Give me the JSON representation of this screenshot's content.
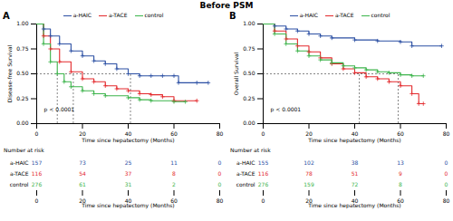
{
  "title": "Before PSM",
  "chart_data": [
    {
      "type": "step",
      "panel": "A",
      "marker": "plus",
      "xlabel": "Time since hepatectomy (Months)",
      "ylabel": "Disease-free Survival",
      "annotation": "p < 0.0001",
      "xlim": [
        0,
        80
      ],
      "xticks": [
        0,
        20,
        40,
        60,
        80
      ],
      "ylim": [
        0,
        1
      ],
      "yticks": [
        {
          "value": 0,
          "label": "0.00"
        },
        {
          "value": 0.25,
          "label": "0.25"
        },
        {
          "value": 0.5,
          "label": "0.50"
        },
        {
          "value": 0.75,
          "label": "0.75"
        },
        {
          "value": 1,
          "label": "1.00"
        }
      ],
      "legend": "top",
      "medians": {
        "level": 0.5,
        "times": [
          9,
          16,
          41
        ]
      },
      "series": [
        {
          "name": "a-HAIC",
          "color": "#2b4fa3",
          "x": [
            0,
            3,
            6,
            10,
            15,
            20,
            25,
            30,
            35,
            40,
            45,
            50,
            55,
            60,
            62,
            70,
            75
          ],
          "values": [
            1,
            0.95,
            0.88,
            0.8,
            0.73,
            0.68,
            0.63,
            0.6,
            0.55,
            0.5,
            0.48,
            0.48,
            0.48,
            0.48,
            0.41,
            0.41,
            0.41
          ]
        },
        {
          "name": "a-TACE",
          "color": "#e3282c",
          "x": [
            0,
            3,
            6,
            10,
            15,
            20,
            25,
            30,
            35,
            40,
            45,
            50,
            55,
            60,
            70
          ],
          "values": [
            1,
            0.88,
            0.75,
            0.62,
            0.52,
            0.45,
            0.42,
            0.38,
            0.35,
            0.33,
            0.3,
            0.29,
            0.27,
            0.23,
            0.23
          ]
        },
        {
          "name": "control",
          "color": "#3cb44b",
          "x": [
            0,
            3,
            6,
            9,
            12,
            15,
            20,
            25,
            30,
            40,
            45,
            50,
            60,
            65
          ],
          "values": [
            1,
            0.8,
            0.62,
            0.5,
            0.42,
            0.37,
            0.33,
            0.3,
            0.28,
            0.26,
            0.24,
            0.23,
            0.22,
            0.22
          ]
        }
      ],
      "risk_table": {
        "title": "Number at risk",
        "x": [
          0,
          20,
          40,
          60,
          80
        ],
        "rows": [
          {
            "name": "a-HAIC",
            "values": [
              157,
              73,
              25,
              11,
              0
            ]
          },
          {
            "name": "a-TACE",
            "values": [
              116,
              54,
              37,
              8,
              0
            ]
          },
          {
            "name": "control",
            "values": [
              276,
              61,
              31,
              2,
              0
            ]
          }
        ]
      }
    },
    {
      "type": "step",
      "panel": "B",
      "marker": "plus",
      "xlabel": "Time since hepatectomy (Months)",
      "ylabel": "Overall Survival",
      "annotation": "p < 0.0001",
      "xlim": [
        0,
        80
      ],
      "xticks": [
        0,
        20,
        40,
        60,
        80
      ],
      "ylim": [
        0,
        1
      ],
      "yticks": [
        {
          "value": 0,
          "label": "0.00"
        },
        {
          "value": 0.25,
          "label": "0.25"
        },
        {
          "value": 0.5,
          "label": "0.50"
        },
        {
          "value": 0.75,
          "label": "0.75"
        },
        {
          "value": 1,
          "label": "1.00"
        }
      ],
      "legend": "top",
      "medians": {
        "level": 0.5,
        "times": [
          42,
          59
        ]
      },
      "series": [
        {
          "name": "a-HAIC",
          "color": "#2b4fa3",
          "x": [
            0,
            5,
            10,
            15,
            20,
            25,
            30,
            40,
            50,
            60,
            65,
            78
          ],
          "values": [
            1,
            0.98,
            0.95,
            0.93,
            0.9,
            0.88,
            0.86,
            0.84,
            0.83,
            0.82,
            0.78,
            0.78
          ]
        },
        {
          "name": "a-TACE",
          "color": "#e3282c",
          "x": [
            0,
            5,
            10,
            15,
            20,
            25,
            30,
            35,
            40,
            45,
            50,
            55,
            60,
            65,
            68,
            70
          ],
          "values": [
            1,
            0.93,
            0.85,
            0.78,
            0.72,
            0.66,
            0.6,
            0.55,
            0.51,
            0.47,
            0.45,
            0.42,
            0.38,
            0.3,
            0.2,
            0.2
          ]
        },
        {
          "name": "control",
          "color": "#3cb44b",
          "x": [
            0,
            5,
            10,
            15,
            20,
            25,
            30,
            35,
            40,
            45,
            50,
            55,
            60,
            65,
            70
          ],
          "values": [
            1,
            0.9,
            0.8,
            0.73,
            0.68,
            0.64,
            0.61,
            0.58,
            0.56,
            0.54,
            0.52,
            0.51,
            0.49,
            0.48,
            0.48
          ]
        }
      ],
      "risk_table": {
        "title": "Number at risk",
        "x": [
          0,
          20,
          40,
          60,
          80
        ],
        "rows": [
          {
            "name": "a-HAIC",
            "values": [
              155,
              102,
              38,
              13,
              0
            ]
          },
          {
            "name": "a-TACE",
            "values": [
              116,
              78,
              51,
              9,
              0
            ]
          },
          {
            "name": "control",
            "values": [
              276,
              159,
              72,
              8,
              0
            ]
          }
        ]
      }
    }
  ]
}
